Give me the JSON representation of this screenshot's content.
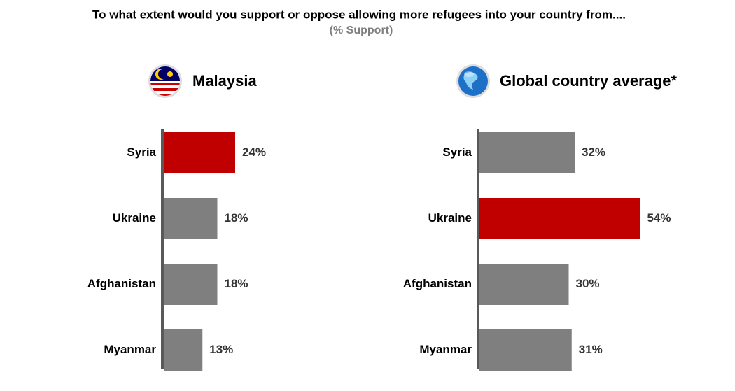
{
  "header": {
    "title": "To what extent would you support or oppose allowing more refugees into your country from....",
    "subtitle": "(% Support)"
  },
  "chart_data": [
    {
      "type": "bar",
      "title": "Malaysia",
      "categories": [
        "Syria",
        "Ukraine",
        "Afghanistan",
        "Myanmar"
      ],
      "values": [
        24,
        18,
        18,
        13
      ],
      "value_labels": [
        "24%",
        "18%",
        "18%",
        "13%"
      ],
      "colors": [
        "#c00000",
        "#7f7f7f",
        "#7f7f7f",
        "#7f7f7f"
      ]
    },
    {
      "type": "bar",
      "title": "Global country average*",
      "categories": [
        "Syria",
        "Ukraine",
        "Afghanistan",
        "Myanmar"
      ],
      "values": [
        32,
        54,
        30,
        31
      ],
      "value_labels": [
        "32%",
        "54%",
        "30%",
        "31%"
      ],
      "colors": [
        "#7f7f7f",
        "#c00000",
        "#7f7f7f",
        "#7f7f7f"
      ]
    }
  ]
}
